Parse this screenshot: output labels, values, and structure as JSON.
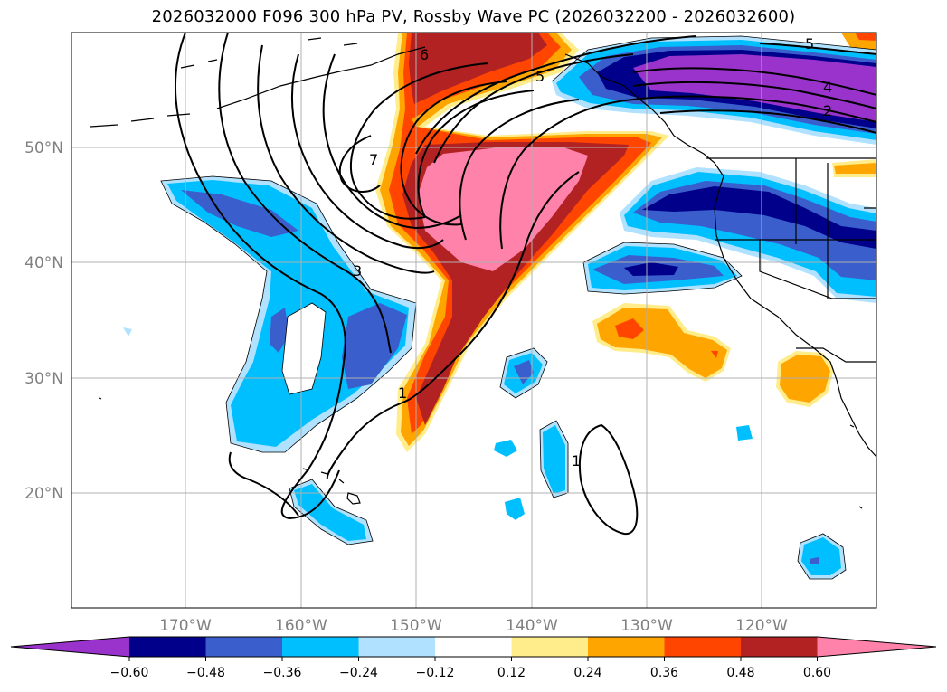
{
  "title": "2026032000 F096 300 hPa PV, Rossby Wave PC (2026032200 - 2026032600)",
  "map": {
    "lat_labels": [
      "50°N",
      "40°N",
      "30°N",
      "20°N"
    ],
    "lon_labels": [
      "170°W",
      "160°W",
      "150°W",
      "140°W",
      "130°W",
      "120°W"
    ],
    "contour_labels": [
      "6",
      "5",
      "4",
      "2",
      "5",
      "7",
      "3",
      "1",
      "1"
    ]
  },
  "colorbar": {
    "colors": [
      "#9933cc",
      "#00008b",
      "#3a5fcd",
      "#00bfff",
      "#b0e2ff",
      "#ffffff",
      "#ffec8b",
      "#ffa500",
      "#ff4500",
      "#b22222",
      "#ff82ab"
    ],
    "tick_labels": [
      "−0.60",
      "−0.48",
      "−0.36",
      "−0.24",
      "−0.12",
      "0.12",
      "0.24",
      "0.36",
      "0.48",
      "0.60"
    ]
  }
}
